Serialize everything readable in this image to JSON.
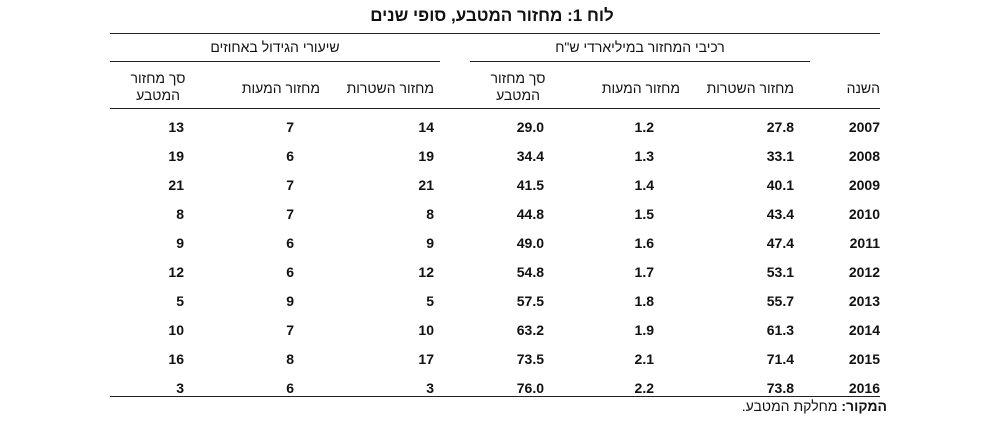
{
  "title": "לוח 1: מחזור המטבע, סופי שנים",
  "groups": {
    "components": "רכיבי המחזור במיליארדי ש\"ח",
    "growth": "שיעורי הגידול באחוזים"
  },
  "columns": {
    "year": "השנה",
    "notes": "מחזור השטרות",
    "coins": "מחזור המעות",
    "total_line1": "סך מחזור",
    "total_line2": "המטבע",
    "growth_notes": "מחזור השטרות",
    "growth_coins": "מחזור המעות",
    "growth_total_line1": "סך מחזור",
    "growth_total_line2": "המטבע"
  },
  "rows": [
    {
      "year": "2007",
      "notes": "27.8",
      "coins": "1.2",
      "total": "29.0",
      "g_notes": "14",
      "g_coins": "7",
      "g_total": "13"
    },
    {
      "year": "2008",
      "notes": "33.1",
      "coins": "1.3",
      "total": "34.4",
      "g_notes": "19",
      "g_coins": "6",
      "g_total": "19"
    },
    {
      "year": "2009",
      "notes": "40.1",
      "coins": "1.4",
      "total": "41.5",
      "g_notes": "21",
      "g_coins": "7",
      "g_total": "21"
    },
    {
      "year": "2010",
      "notes": "43.4",
      "coins": "1.5",
      "total": "44.8",
      "g_notes": "8",
      "g_coins": "7",
      "g_total": "8"
    },
    {
      "year": "2011",
      "notes": "47.4",
      "coins": "1.6",
      "total": "49.0",
      "g_notes": "9",
      "g_coins": "6",
      "g_total": "9"
    },
    {
      "year": "2012",
      "notes": "53.1",
      "coins": "1.7",
      "total": "54.8",
      "g_notes": "12",
      "g_coins": "6",
      "g_total": "12"
    },
    {
      "year": "2013",
      "notes": "55.7",
      "coins": "1.8",
      "total": "57.5",
      "g_notes": "5",
      "g_coins": "9",
      "g_total": "5"
    },
    {
      "year": "2014",
      "notes": "61.3",
      "coins": "1.9",
      "total": "63.2",
      "g_notes": "10",
      "g_coins": "7",
      "g_total": "10"
    },
    {
      "year": "2015",
      "notes": "71.4",
      "coins": "2.1",
      "total": "73.5",
      "g_notes": "17",
      "g_coins": "8",
      "g_total": "16"
    },
    {
      "year": "2016",
      "notes": "73.8",
      "coins": "2.2",
      "total": "76.0",
      "g_notes": "3",
      "g_coins": "6",
      "g_total": "3"
    }
  ],
  "source": {
    "label": "המקור:",
    "text": "מחלקת המטבע."
  }
}
